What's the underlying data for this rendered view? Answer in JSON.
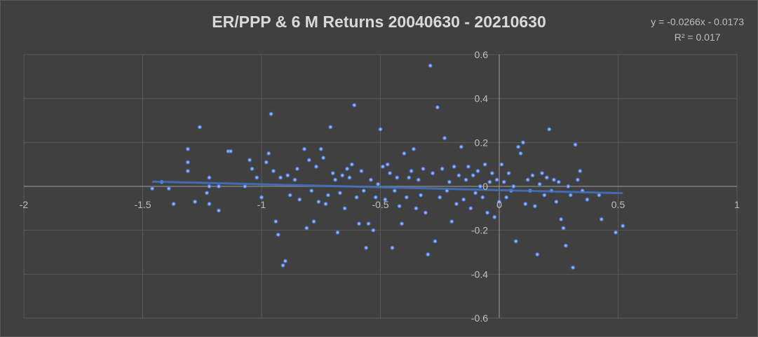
{
  "chart_data": {
    "type": "scatter",
    "title": "ER/PPP  & 6 M Returns 20040630 - 20210630",
    "trendline": {
      "equation": "y = -0.0266x - 0.0173",
      "r2": "R² = 0.017",
      "slope": -0.0266,
      "intercept": -0.0173
    },
    "xlim": [
      -2,
      1
    ],
    "ylim": [
      -0.6,
      0.6
    ],
    "x_ticks": [
      "-2",
      "-1.5",
      "-1",
      "-0.5",
      "0",
      "0.5",
      "1"
    ],
    "y_ticks": [
      "0.6",
      "0.4",
      "0.2",
      "0",
      "-0.2",
      "-0.4",
      "-0.6"
    ],
    "x_tick_values": [
      -2,
      -1.5,
      -1,
      -0.5,
      0,
      0.5,
      1
    ],
    "y_tick_values": [
      0.6,
      0.4,
      0.2,
      0,
      -0.2,
      -0.4,
      -0.6
    ],
    "grid": true,
    "colors": {
      "marker": "#5b8ef2",
      "marker_glow": "#2f6fe0",
      "trendline": "#4472c4",
      "grid": "#595959",
      "text": "#bfbfbf"
    },
    "points": [
      [
        -1.46,
        -0.01
      ],
      [
        -1.42,
        0.02
      ],
      [
        -1.39,
        -0.01
      ],
      [
        -1.37,
        -0.08
      ],
      [
        -1.31,
        0.17
      ],
      [
        -1.31,
        0.11
      ],
      [
        -1.31,
        0.07
      ],
      [
        -1.28,
        -0.07
      ],
      [
        -1.26,
        0.27
      ],
      [
        -1.23,
        -0.03
      ],
      [
        -1.22,
        0.04
      ],
      [
        -1.22,
        0.0
      ],
      [
        -1.22,
        -0.08
      ],
      [
        -1.18,
        0.0
      ],
      [
        -1.18,
        -0.11
      ],
      [
        -1.14,
        0.16
      ],
      [
        -1.13,
        0.16
      ],
      [
        -1.07,
        -0.0
      ],
      [
        -1.05,
        0.12
      ],
      [
        -1.04,
        0.08
      ],
      [
        -1.02,
        0.04
      ],
      [
        -1.0,
        -0.05
      ],
      [
        -0.98,
        0.11
      ],
      [
        -0.97,
        0.15
      ],
      [
        -0.96,
        0.33
      ],
      [
        -0.95,
        0.07
      ],
      [
        -0.94,
        -0.16
      ],
      [
        -0.93,
        -0.22
      ],
      [
        -0.92,
        0.04
      ],
      [
        -0.91,
        -0.36
      ],
      [
        -0.9,
        -0.34
      ],
      [
        -0.89,
        0.05
      ],
      [
        -0.88,
        -0.04
      ],
      [
        -0.86,
        0.03
      ],
      [
        -0.85,
        0.08
      ],
      [
        -0.84,
        -0.06
      ],
      [
        -0.82,
        0.17
      ],
      [
        -0.81,
        -0.19
      ],
      [
        -0.8,
        0.12
      ],
      [
        -0.79,
        -0.02
      ],
      [
        -0.78,
        -0.16
      ],
      [
        -0.77,
        0.09
      ],
      [
        -0.76,
        -0.07
      ],
      [
        -0.75,
        0.17
      ],
      [
        -0.74,
        0.13
      ],
      [
        -0.73,
        -0.08
      ],
      [
        -0.72,
        -0.04
      ],
      [
        -0.71,
        0.27
      ],
      [
        -0.7,
        0.06
      ],
      [
        -0.69,
        0.03
      ],
      [
        -0.68,
        -0.21
      ],
      [
        -0.67,
        -0.03
      ],
      [
        -0.66,
        0.05
      ],
      [
        -0.65,
        -0.1
      ],
      [
        -0.64,
        0.08
      ],
      [
        -0.63,
        0.04
      ],
      [
        -0.62,
        0.1
      ],
      [
        -0.61,
        0.37
      ],
      [
        -0.6,
        -0.05
      ],
      [
        -0.59,
        -0.17
      ],
      [
        -0.58,
        0.07
      ],
      [
        -0.57,
        -0.02
      ],
      [
        -0.56,
        -0.28
      ],
      [
        -0.55,
        -0.17
      ],
      [
        -0.54,
        0.03
      ],
      [
        -0.53,
        -0.2
      ],
      [
        -0.52,
        -0.05
      ],
      [
        -0.51,
        0.01
      ],
      [
        -0.5,
        0.26
      ],
      [
        -0.49,
        0.09
      ],
      [
        -0.48,
        -0.06
      ],
      [
        -0.47,
        0.1
      ],
      [
        -0.46,
        0.06
      ],
      [
        -0.45,
        -0.28
      ],
      [
        -0.44,
        -0.02
      ],
      [
        -0.43,
        0.04
      ],
      [
        -0.42,
        -0.09
      ],
      [
        -0.41,
        -0.17
      ],
      [
        -0.4,
        0.15
      ],
      [
        -0.39,
        -0.05
      ],
      [
        -0.38,
        0.04
      ],
      [
        -0.37,
        0.07
      ],
      [
        -0.36,
        0.17
      ],
      [
        -0.35,
        -0.1
      ],
      [
        -0.34,
        0.03
      ],
      [
        -0.33,
        -0.04
      ],
      [
        -0.32,
        0.08
      ],
      [
        -0.31,
        -0.12
      ],
      [
        -0.3,
        -0.31
      ],
      [
        -0.29,
        0.55
      ],
      [
        -0.28,
        0.06
      ],
      [
        -0.27,
        -0.25
      ],
      [
        -0.26,
        0.36
      ],
      [
        -0.25,
        -0.05
      ],
      [
        -0.24,
        0.08
      ],
      [
        -0.23,
        0.22
      ],
      [
        -0.22,
        -0.02
      ],
      [
        -0.21,
        0.02
      ],
      [
        -0.2,
        -0.16
      ],
      [
        -0.19,
        0.09
      ],
      [
        -0.18,
        -0.08
      ],
      [
        -0.17,
        0.05
      ],
      [
        -0.16,
        0.18
      ],
      [
        -0.15,
        -0.06
      ],
      [
        -0.14,
        0.03
      ],
      [
        -0.13,
        0.09
      ],
      [
        -0.12,
        -0.1
      ],
      [
        -0.11,
        0.05
      ],
      [
        -0.1,
        -0.03
      ],
      [
        -0.09,
        0.07
      ],
      [
        -0.08,
        0.0
      ],
      [
        -0.07,
        -0.05
      ],
      [
        -0.06,
        0.1
      ],
      [
        -0.05,
        -0.12
      ],
      [
        -0.04,
        0.02
      ],
      [
        -0.03,
        0.06
      ],
      [
        -0.02,
        -0.14
      ],
      [
        -0.01,
        0.03
      ],
      [
        0.0,
        -0.07
      ],
      [
        0.01,
        0.1
      ],
      [
        0.02,
        0.02
      ],
      [
        0.03,
        -0.05
      ],
      [
        0.04,
        0.06
      ],
      [
        0.05,
        -0.02
      ],
      [
        0.06,
        0.0
      ],
      [
        0.07,
        -0.25
      ],
      [
        0.08,
        0.18
      ],
      [
        0.09,
        0.15
      ],
      [
        0.1,
        0.2
      ],
      [
        0.11,
        -0.08
      ],
      [
        0.12,
        0.03
      ],
      [
        0.13,
        -0.02
      ],
      [
        0.14,
        0.05
      ],
      [
        0.15,
        -0.09
      ],
      [
        0.16,
        -0.31
      ],
      [
        0.17,
        0.01
      ],
      [
        0.18,
        0.06
      ],
      [
        0.19,
        -0.04
      ],
      [
        0.2,
        0.04
      ],
      [
        0.21,
        0.26
      ],
      [
        0.22,
        -0.02
      ],
      [
        0.23,
        0.03
      ],
      [
        0.24,
        -0.07
      ],
      [
        0.25,
        0.02
      ],
      [
        0.26,
        -0.15
      ],
      [
        0.27,
        -0.19
      ],
      [
        0.28,
        -0.27
      ],
      [
        0.29,
        0.0
      ],
      [
        0.3,
        -0.04
      ],
      [
        0.31,
        -0.37
      ],
      [
        0.32,
        0.19
      ],
      [
        0.33,
        0.03
      ],
      [
        0.34,
        0.07
      ],
      [
        0.35,
        -0.02
      ],
      [
        0.37,
        -0.06
      ],
      [
        0.42,
        -0.04
      ],
      [
        0.43,
        -0.15
      ],
      [
        0.49,
        -0.21
      ],
      [
        0.52,
        -0.18
      ]
    ]
  }
}
